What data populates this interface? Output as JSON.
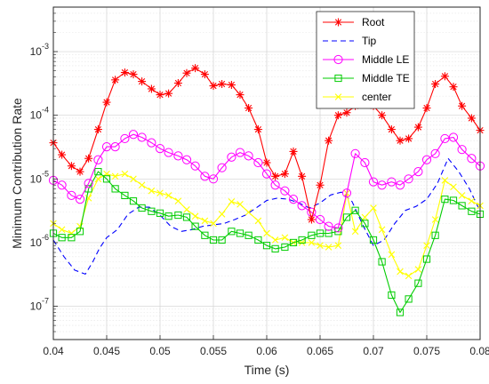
{
  "chart_data": {
    "type": "line",
    "xlabel": "Time (s)",
    "ylabel": "Minimum Contribution Rate",
    "yscale": "log",
    "xlim": [
      0.04,
      0.08
    ],
    "ylim": [
      3e-08,
      0.005
    ],
    "x_ticks": [
      0.04,
      0.045,
      0.05,
      0.055,
      0.06,
      0.065,
      0.07,
      0.075,
      0.08
    ],
    "x_tick_labels": [
      "0.04",
      "0.045",
      "0.05",
      "0.055",
      "0.06",
      "0.065",
      "0.07",
      "0.075",
      "0.08"
    ],
    "y_ticks": [
      1e-07,
      1e-06,
      1e-05,
      0.0001,
      0.001
    ],
    "y_tick_labels": [
      {
        "base": "10",
        "exp": "-7"
      },
      {
        "base": "10",
        "exp": "-6"
      },
      {
        "base": "10",
        "exp": "-5"
      },
      {
        "base": "10",
        "exp": "-4"
      },
      {
        "base": "10",
        "exp": "-3"
      }
    ],
    "grid": true,
    "minor_grid": true,
    "legend_position": "top-right",
    "series": [
      {
        "name": "Root",
        "color": "#ff0000",
        "line": "solid",
        "marker": "asterisk",
        "x": [
          0.04,
          0.0408,
          0.0417,
          0.0425,
          0.0433,
          0.0442,
          0.045,
          0.0458,
          0.0467,
          0.0475,
          0.0483,
          0.0492,
          0.05,
          0.0508,
          0.0517,
          0.0525,
          0.0533,
          0.0542,
          0.055,
          0.0558,
          0.0567,
          0.0575,
          0.0583,
          0.0592,
          0.06,
          0.0608,
          0.0617,
          0.0625,
          0.0633,
          0.0642,
          0.065,
          0.0658,
          0.0667,
          0.0675,
          0.0683,
          0.0692,
          0.07,
          0.0708,
          0.0717,
          0.0725,
          0.0733,
          0.0742,
          0.075,
          0.0758,
          0.0767,
          0.0775,
          0.0783,
          0.0792,
          0.08
        ],
        "y": [
          3.7e-05,
          2.4e-05,
          1.6e-05,
          1.3e-05,
          2.1e-05,
          6e-05,
          0.00016,
          0.00036,
          0.00047,
          0.00044,
          0.00034,
          0.00026,
          0.00021,
          0.00022,
          0.00032,
          0.00046,
          0.00055,
          0.00044,
          0.00029,
          0.00031,
          0.0003,
          0.00021,
          0.00013,
          6e-05,
          1.8e-05,
          1.1e-05,
          1.2e-05,
          2.7e-05,
          1.1e-05,
          2.3e-06,
          8e-06,
          4e-05,
          0.0001,
          0.00011,
          0.00014,
          0.00018,
          0.00014,
          0.0001,
          6e-05,
          4e-05,
          4.3e-05,
          6.5e-05,
          0.00013,
          0.00031,
          0.00041,
          0.00028,
          0.00014,
          9e-05,
          5.8e-05
        ]
      },
      {
        "name": "Tip",
        "color": "#0000ff",
        "line": "dashed",
        "marker": "none",
        "x": [
          0.04,
          0.041,
          0.042,
          0.043,
          0.0437,
          0.0443,
          0.045,
          0.046,
          0.047,
          0.048,
          0.049,
          0.05,
          0.051,
          0.052,
          0.053,
          0.054,
          0.055,
          0.056,
          0.057,
          0.058,
          0.059,
          0.06,
          0.061,
          0.062,
          0.063,
          0.064,
          0.065,
          0.066,
          0.067,
          0.068,
          0.069,
          0.07,
          0.071,
          0.072,
          0.073,
          0.074,
          0.075,
          0.076,
          0.077,
          0.078,
          0.079,
          0.08
        ],
        "y": [
          1.1e-06,
          6e-07,
          3.7e-07,
          3.2e-07,
          5e-07,
          8e-07,
          1.2e-06,
          1.6e-06,
          2.8e-06,
          3.6e-06,
          3.6e-06,
          2.7e-06,
          1.8e-06,
          1.5e-06,
          1.6e-06,
          1.8e-06,
          1.9e-06,
          2e-06,
          2.3e-06,
          2.7e-06,
          3.5e-06,
          4.6e-06,
          5e-06,
          4.8e-06,
          4.2e-06,
          3.5e-06,
          4.2e-06,
          5.6e-06,
          6.2e-06,
          4.4e-06,
          1.9e-06,
          9e-07,
          1.1e-06,
          2e-06,
          3.2e-06,
          3.7e-06,
          4.8e-06,
          8.5e-06,
          2.1e-05,
          1.3e-05,
          7e-06,
          3.1e-06
        ]
      },
      {
        "name": "Middle LE",
        "color": "#ff00ff",
        "line": "solid",
        "marker": "circle",
        "x": [
          0.04,
          0.0408,
          0.0417,
          0.0425,
          0.0433,
          0.0442,
          0.045,
          0.0458,
          0.0467,
          0.0475,
          0.0483,
          0.0492,
          0.05,
          0.0508,
          0.0517,
          0.0525,
          0.0533,
          0.0542,
          0.055,
          0.0558,
          0.0567,
          0.0575,
          0.0583,
          0.0592,
          0.06,
          0.0608,
          0.0617,
          0.0625,
          0.0633,
          0.0642,
          0.065,
          0.0658,
          0.0667,
          0.0675,
          0.0683,
          0.0692,
          0.07,
          0.0708,
          0.0717,
          0.0725,
          0.0733,
          0.0742,
          0.075,
          0.0758,
          0.0767,
          0.0775,
          0.0783,
          0.0792,
          0.08
        ],
        "y": [
          9.5e-06,
          8e-06,
          5.5e-06,
          4.8e-06,
          8.5e-06,
          2e-05,
          3.2e-05,
          3.2e-05,
          4.3e-05,
          5e-05,
          4.5e-05,
          3.7e-05,
          3e-05,
          2.6e-05,
          2.3e-05,
          2e-05,
          1.6e-05,
          1.1e-05,
          1e-05,
          1.5e-05,
          2.2e-05,
          2.6e-05,
          2.3e-05,
          1.8e-05,
          1.2e-05,
          8e-06,
          6.5e-06,
          4.8e-06,
          3.8e-06,
          3e-06,
          2.3e-06,
          1.8e-06,
          1.7e-06,
          6e-06,
          2.5e-05,
          1.8e-05,
          9e-06,
          8e-06,
          9e-06,
          8e-06,
          1e-05,
          1.3e-05,
          2e-05,
          2.5e-05,
          4.3e-05,
          4.5e-05,
          2.9e-05,
          2.1e-05,
          1.6e-05
        ]
      },
      {
        "name": "Middle TE",
        "color": "#00cc00",
        "line": "solid",
        "marker": "square",
        "x": [
          0.04,
          0.0408,
          0.0417,
          0.0425,
          0.0433,
          0.0442,
          0.045,
          0.0458,
          0.0467,
          0.0475,
          0.0483,
          0.0492,
          0.05,
          0.0508,
          0.0517,
          0.0525,
          0.0533,
          0.0542,
          0.055,
          0.0558,
          0.0567,
          0.0575,
          0.0583,
          0.0592,
          0.06,
          0.0608,
          0.0617,
          0.0625,
          0.0633,
          0.0642,
          0.065,
          0.0658,
          0.0667,
          0.0675,
          0.0683,
          0.0692,
          0.07,
          0.0708,
          0.0717,
          0.0725,
          0.0733,
          0.0742,
          0.075,
          0.0758,
          0.0767,
          0.0775,
          0.0783,
          0.0792,
          0.08
        ],
        "y": [
          1.4e-06,
          1.2e-06,
          1.2e-06,
          1.5e-06,
          7e-06,
          1.3e-05,
          1e-05,
          7e-06,
          5.5e-06,
          4.5e-06,
          3.5e-06,
          3.1e-06,
          2.9e-06,
          2.6e-06,
          2.7e-06,
          2.5e-06,
          1.8e-06,
          1.3e-06,
          1.1e-06,
          1.1e-06,
          1.5e-06,
          1.4e-06,
          1.3e-06,
          1.1e-06,
          9e-07,
          8e-07,
          8.5e-07,
          1e-06,
          1.1e-06,
          1.3e-06,
          1.4e-06,
          1.4e-06,
          1.5e-06,
          2.5e-06,
          3.2e-06,
          2e-06,
          1.1e-06,
          5e-07,
          1.5e-07,
          8e-08,
          1.3e-07,
          2.3e-07,
          5.5e-07,
          1.3e-06,
          4.8e-06,
          4.6e-06,
          3.8e-06,
          3.1e-06,
          2.8e-06
        ]
      },
      {
        "name": "center",
        "color": "#ffff00",
        "line": "solid",
        "marker": "x",
        "x": [
          0.04,
          0.0408,
          0.0417,
          0.0425,
          0.0433,
          0.0442,
          0.045,
          0.0458,
          0.0467,
          0.0475,
          0.0483,
          0.0492,
          0.05,
          0.0508,
          0.0517,
          0.0525,
          0.0533,
          0.0542,
          0.055,
          0.0558,
          0.0567,
          0.0575,
          0.0583,
          0.0592,
          0.06,
          0.0608,
          0.0617,
          0.0625,
          0.0633,
          0.0642,
          0.065,
          0.0658,
          0.0667,
          0.0675,
          0.0683,
          0.0692,
          0.07,
          0.0708,
          0.0717,
          0.0725,
          0.0733,
          0.0742,
          0.075,
          0.0758,
          0.0767,
          0.0775,
          0.0783,
          0.0792,
          0.08
        ],
        "y": [
          2e-06,
          1.6e-06,
          1.4e-06,
          1.8e-06,
          5e-06,
          1e-05,
          1.2e-05,
          1.1e-05,
          1.2e-05,
          1e-05,
          8e-06,
          6.5e-06,
          6e-06,
          5.5e-06,
          4.5e-06,
          3.3e-06,
          2.6e-06,
          2.2e-06,
          2e-06,
          2.8e-06,
          4.4e-06,
          4e-06,
          3e-06,
          2.2e-06,
          1.4e-06,
          1.1e-06,
          1.2e-06,
          1e-06,
          1e-06,
          1e-06,
          9e-07,
          8.5e-07,
          9e-07,
          6e-06,
          1.5e-06,
          2.5e-06,
          3.5e-06,
          1.6e-06,
          6.5e-07,
          3.5e-07,
          3e-07,
          3.8e-07,
          9e-07,
          2.3e-06,
          9.5e-06,
          7.5e-06,
          5.5e-06,
          4.5e-06,
          3.8e-06
        ]
      }
    ]
  }
}
